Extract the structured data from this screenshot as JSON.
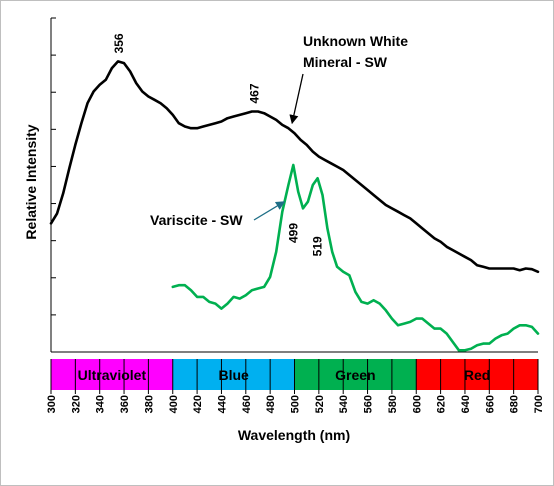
{
  "chart_data": {
    "type": "line",
    "title": "",
    "xlabel": "Wavelength (nm)",
    "ylabel": "Relative Intensity",
    "xlim": [
      300,
      700
    ],
    "ylim": [
      0,
      100
    ],
    "x_ticks": [
      300,
      320,
      340,
      360,
      380,
      400,
      420,
      440,
      460,
      480,
      500,
      520,
      540,
      560,
      580,
      600,
      620,
      640,
      660,
      680,
      700
    ],
    "y_ticks_count": 9,
    "y_tick_labels_shown": false,
    "grid": false,
    "legend": "none",
    "series": [
      {
        "name": "Unknown White Mineral - SW",
        "label_line1": "Unknown White",
        "label_line2": "Mineral - SW",
        "color": "#000000",
        "x": [
          300,
          305,
          310,
          315,
          320,
          325,
          330,
          335,
          340,
          345,
          350,
          355,
          360,
          365,
          370,
          375,
          380,
          385,
          390,
          395,
          400,
          405,
          410,
          415,
          420,
          425,
          430,
          435,
          440,
          445,
          450,
          455,
          460,
          465,
          470,
          475,
          480,
          485,
          490,
          495,
          500,
          505,
          510,
          515,
          520,
          525,
          530,
          535,
          540,
          545,
          550,
          555,
          560,
          565,
          570,
          575,
          580,
          585,
          590,
          595,
          600,
          605,
          610,
          615,
          620,
          625,
          630,
          635,
          640,
          645,
          650,
          655,
          660,
          665,
          670,
          675,
          680,
          685,
          690,
          695,
          700
        ],
        "y": [
          38.5,
          41.5,
          47.5,
          55,
          62,
          68.5,
          74.5,
          78,
          80,
          81.5,
          85,
          87,
          86.5,
          84,
          80.5,
          78,
          76.5,
          75.5,
          74.5,
          73,
          71,
          68.5,
          67.5,
          67,
          67,
          67.5,
          68,
          68.5,
          69,
          70,
          70.5,
          71,
          71.5,
          72,
          72,
          71.5,
          70.5,
          69.5,
          68,
          67,
          65.5,
          63.5,
          62,
          60,
          58.5,
          57.5,
          56.5,
          55.5,
          54.5,
          53,
          51.5,
          50,
          48.5,
          47,
          45.5,
          44,
          43,
          42,
          41,
          40,
          38.5,
          37,
          35.5,
          34,
          33,
          31.5,
          30.5,
          29.5,
          28.5,
          27.5,
          26,
          25.5,
          25,
          25,
          25,
          25,
          25,
          24.5,
          25,
          24.8,
          24
        ]
      },
      {
        "name": "Variscite - SW",
        "color": "#00b050",
        "x": [
          400,
          405,
          410,
          415,
          420,
          425,
          430,
          435,
          440,
          445,
          450,
          455,
          460,
          465,
          470,
          475,
          480,
          485,
          490,
          495,
          499,
          503,
          507,
          511,
          515,
          519,
          523,
          527,
          531,
          535,
          540,
          545,
          550,
          555,
          560,
          565,
          570,
          575,
          580,
          585,
          590,
          595,
          600,
          605,
          610,
          615,
          620,
          625,
          630,
          635,
          640,
          645,
          650,
          655,
          660,
          665,
          670,
          675,
          680,
          685,
          690,
          695,
          700
        ],
        "y": [
          19.5,
          20,
          20,
          18.5,
          16.5,
          16.5,
          15,
          14.5,
          13,
          14.5,
          16.5,
          16,
          17,
          18.5,
          19,
          19.5,
          22.5,
          30,
          42,
          50,
          56,
          48,
          43,
          45,
          50,
          52,
          47,
          37,
          30,
          25.5,
          24,
          23,
          18,
          15,
          14.5,
          15.5,
          14.5,
          12.5,
          10,
          8,
          8.5,
          9,
          10,
          10,
          8.5,
          7,
          7,
          5.5,
          3,
          0.5,
          0.5,
          1,
          2,
          2.5,
          2.5,
          4,
          5,
          5.5,
          7,
          8,
          8,
          7.5,
          5.5
        ]
      }
    ],
    "peak_labels": [
      {
        "text": "356",
        "x": 356,
        "y": 87
      },
      {
        "text": "467",
        "x": 467,
        "y": 72
      },
      {
        "text": "499",
        "x": 499,
        "y": 56
      },
      {
        "text": "519",
        "x": 519,
        "y": 52
      }
    ],
    "color_bands": [
      {
        "label": "Ultraviolet",
        "from": 300,
        "to": 400,
        "color": "#ff00ff"
      },
      {
        "label": "Blue",
        "from": 400,
        "to": 500,
        "color": "#00b0f0"
      },
      {
        "label": "Green",
        "from": 500,
        "to": 600,
        "color": "#00b050"
      },
      {
        "label": "Red",
        "from": 600,
        "to": 700,
        "color": "#ff0000"
      }
    ]
  }
}
